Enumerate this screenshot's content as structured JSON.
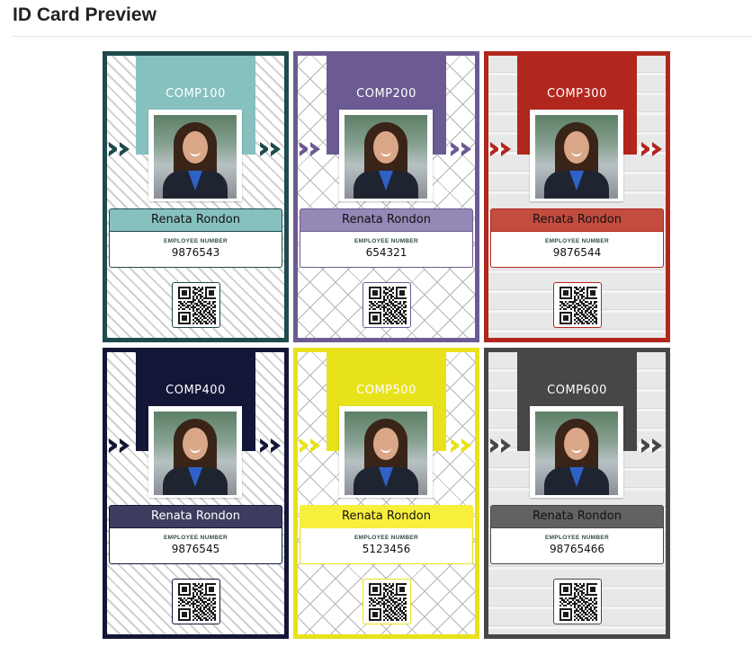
{
  "page": {
    "title": "ID Card Preview"
  },
  "cards": [
    {
      "company": "COMP100",
      "name": "Renata Rondon",
      "employee_label": "EMPLOYEE NUMBER",
      "employee_number": "9876543",
      "color": "#1e4b4d",
      "light_color": "#86c1bf",
      "text_color": "#111111",
      "pattern": "waves"
    },
    {
      "company": "COMP200",
      "name": "Renata Rondon",
      "employee_label": "EMPLOYEE NUMBER",
      "employee_number": "654321",
      "color": "#6b5b92",
      "light_color": "#9587b6",
      "text_color": "#111111",
      "pattern": "diamond"
    },
    {
      "company": "COMP300",
      "name": "Renata Rondon",
      "employee_label": "EMPLOYEE NUMBER",
      "employee_number": "9876544",
      "color": "#b2271d",
      "light_color": "#c24c3f",
      "text_color": "#111111",
      "pattern": "wood"
    },
    {
      "company": "COMP400",
      "name": "Renata Rondon",
      "employee_label": "EMPLOYEE NUMBER",
      "employee_number": "9876545",
      "color": "#141638",
      "light_color": "#3b3c5e",
      "text_color": "#ffffff",
      "pattern": "waves"
    },
    {
      "company": "COMP500",
      "name": "Renata Rondon",
      "employee_label": "EMPLOYEE NUMBER",
      "employee_number": "5123456",
      "color": "#e8e21b",
      "light_color": "#f7ef3b",
      "text_color": "#111111",
      "pattern": "diamond"
    },
    {
      "company": "COMP600",
      "name": "Renata Rondon",
      "employee_label": "EMPLOYEE NUMBER",
      "employee_number": "98765466",
      "color": "#474747",
      "light_color": "#626262",
      "text_color": "#111111",
      "pattern": "wood"
    }
  ]
}
